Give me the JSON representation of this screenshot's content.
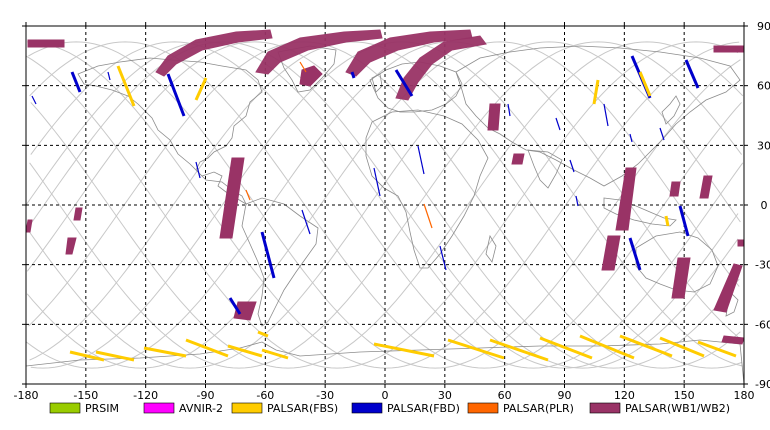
{
  "map": {
    "projection": "equirectangular",
    "lon_range": [
      -180,
      180
    ],
    "lat_range": [
      -90,
      90
    ],
    "x_ticks": [
      "-180",
      "-150",
      "-120",
      "-90",
      "-60",
      "-30",
      "0",
      "30",
      "60",
      "90",
      "120",
      "150",
      "180"
    ],
    "y_ticks": [
      "90",
      "60",
      "30",
      "0",
      "-30",
      "-60",
      "-90"
    ],
    "grid": "dashed",
    "colors": {
      "PRISM": "#99cc00",
      "AVNIR-2": "#ff00ff",
      "PALSAR(FBS)": "#ffcc00",
      "PALSAR(FBD)": "#0000cc",
      "PALSAR(PLR)": "#ff6600",
      "PALSAR(WB1/WB2)": "#993366",
      "coast": "#909090",
      "orbit": "#c8c8c8"
    }
  },
  "legend": [
    {
      "label": "PRSIM",
      "color": "#99cc00"
    },
    {
      "label": "AVNIR-2",
      "color": "#ff00ff"
    },
    {
      "label": "PALSAR(FBS)",
      "color": "#ffcc00"
    },
    {
      "label": "PALSAR(FBD)",
      "color": "#0000cc"
    },
    {
      "label": "PALSAR(PLR)",
      "color": "#ff6600"
    },
    {
      "label": "PALSAR(WB1/WB2)",
      "color": "#993366"
    }
  ]
}
